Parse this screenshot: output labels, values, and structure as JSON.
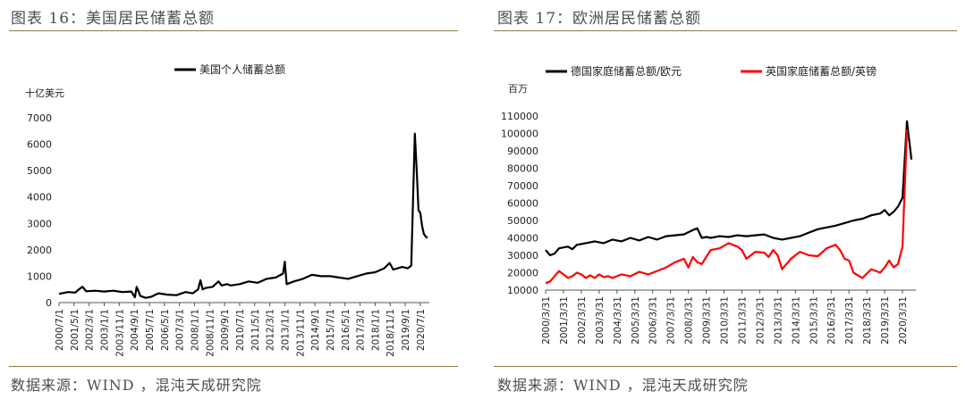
{
  "left_panel": {
    "title": "图表 16：美国居民储蓄总额",
    "source": "数据来源：WIND ，混沌天成研究院"
  },
  "right_panel": {
    "title": "图表 17：欧洲居民储蓄总额",
    "source": "数据来源：WIND ，混沌天成研究院"
  },
  "colors": {
    "black": "#000000",
    "red": "#ff0000",
    "rule": "#8b7b4a"
  },
  "chart_data": [
    {
      "type": "line",
      "title": "",
      "ylabel": "十亿美元",
      "xlabel": "",
      "ylim": [
        0,
        7000
      ],
      "yticks": [
        0,
        1000,
        2000,
        3000,
        4000,
        5000,
        6000,
        7000
      ],
      "xticks": [
        "2000/7/1",
        "2001/5/1",
        "2002/3/1",
        "2003/1/1",
        "2003/11/1",
        "2004/9/1",
        "2005/7/1",
        "2006/5/1",
        "2007/3/1",
        "2008/1/1",
        "2008/11/1",
        "2009/9/1",
        "2010/7/1",
        "2011/5/1",
        "2012/3/1",
        "2013/1/1",
        "2013/11/1",
        "2014/9/1",
        "2015/7/1",
        "2016/5/1",
        "2017/3/1",
        "2018/1/1",
        "2018/11/1",
        "2019/9/1",
        "2020/7/1"
      ],
      "legend": "top-center",
      "grid": false,
      "series": [
        {
          "name": "美国个人储蓄总额",
          "color": "#000000",
          "x": [
            2000.5,
            2001.0,
            2001.4,
            2001.6,
            2001.8,
            2002.0,
            2002.5,
            2003.0,
            2003.5,
            2004.0,
            2004.5,
            2004.7,
            2004.8,
            2005.0,
            2005.3,
            2005.6,
            2006.0,
            2006.5,
            2007.0,
            2007.5,
            2007.9,
            2008.2,
            2008.33,
            2008.45,
            2008.6,
            2009.0,
            2009.33,
            2009.5,
            2009.8,
            2010.0,
            2010.5,
            2011.0,
            2011.5,
            2012.0,
            2012.5,
            2012.9,
            2013.0,
            2013.1,
            2013.5,
            2014.0,
            2014.5,
            2015.0,
            2015.5,
            2016.0,
            2016.5,
            2017.0,
            2017.5,
            2018.0,
            2018.5,
            2018.8,
            2019.0,
            2019.5,
            2019.8,
            2020.0,
            2020.2,
            2020.3,
            2020.4,
            2020.5,
            2020.6,
            2020.7,
            2020.8,
            2020.9
          ],
          "values": [
            330,
            400,
            380,
            500,
            600,
            430,
            450,
            420,
            450,
            400,
            420,
            200,
            600,
            250,
            180,
            220,
            350,
            300,
            280,
            400,
            350,
            500,
            850,
            500,
            550,
            600,
            800,
            650,
            700,
            650,
            700,
            800,
            750,
            900,
            950,
            1100,
            1550,
            700,
            800,
            900,
            1050,
            1000,
            1000,
            950,
            900,
            1000,
            1100,
            1150,
            1300,
            1500,
            1250,
            1350,
            1300,
            1400,
            6400,
            5000,
            3500,
            3400,
            2900,
            2600,
            2500,
            2450
          ]
        }
      ]
    },
    {
      "type": "line",
      "title": "",
      "ylabel": "百万",
      "xlabel": "",
      "ylim": [
        10000,
        110000
      ],
      "yticks": [
        10000,
        20000,
        30000,
        40000,
        50000,
        60000,
        70000,
        80000,
        90000,
        100000,
        110000
      ],
      "xticks": [
        "2000/3/31",
        "2001/3/31",
        "2002/3/31",
        "2003/3/31",
        "2004/3/31",
        "2005/3/31",
        "2006/3/31",
        "2007/3/31",
        "2008/3/31",
        "2009/3/31",
        "2010/3/31",
        "2011/3/31",
        "2012/3/31",
        "2013/3/31",
        "2014/3/31",
        "2015/3/31",
        "2016/3/31",
        "2017/3/31",
        "2018/3/31",
        "2019/3/31",
        "2020/3/31"
      ],
      "legend": "top",
      "grid": false,
      "series": [
        {
          "name": "德国家庭储蓄总额/欧元",
          "color": "#000000",
          "x": [
            2000.25,
            2000.5,
            2000.75,
            2001.0,
            2001.25,
            2001.5,
            2001.75,
            2002.0,
            2002.5,
            2003.0,
            2003.5,
            2004.0,
            2004.5,
            2005.0,
            2005.5,
            2006.0,
            2006.5,
            2007.0,
            2007.5,
            2008.0,
            2008.5,
            2008.75,
            2009.0,
            2009.25,
            2009.5,
            2010.0,
            2010.5,
            2011.0,
            2011.5,
            2012.0,
            2012.5,
            2013.0,
            2013.5,
            2014.0,
            2014.5,
            2015.0,
            2015.5,
            2016.0,
            2016.5,
            2017.0,
            2017.5,
            2018.0,
            2018.5,
            2019.0,
            2019.25,
            2019.5,
            2019.75,
            2020.0,
            2020.25,
            2020.5,
            2020.75
          ],
          "values": [
            33000,
            30000,
            31000,
            34000,
            34500,
            35000,
            33500,
            36000,
            37000,
            38000,
            37000,
            39000,
            38000,
            40000,
            38500,
            40500,
            39000,
            41000,
            41500,
            42000,
            44500,
            45500,
            40000,
            40500,
            40000,
            41000,
            40500,
            41500,
            41000,
            41500,
            42000,
            40000,
            39000,
            40000,
            41000,
            43000,
            45000,
            46000,
            47000,
            48500,
            50000,
            51000,
            53000,
            54000,
            56000,
            53000,
            55000,
            58000,
            63000,
            107000,
            85000
          ]
        },
        {
          "name": "英国家庭储蓄总额/英镑",
          "color": "#ff0000",
          "x": [
            2000.25,
            2000.5,
            2000.75,
            2001.0,
            2001.25,
            2001.5,
            2001.75,
            2002.0,
            2002.25,
            2002.5,
            2002.75,
            2003.0,
            2003.25,
            2003.5,
            2003.75,
            2004.0,
            2004.5,
            2005.0,
            2005.5,
            2006.0,
            2006.5,
            2007.0,
            2007.5,
            2008.0,
            2008.25,
            2008.5,
            2008.75,
            2009.0,
            2009.25,
            2009.5,
            2010.0,
            2010.5,
            2011.0,
            2011.25,
            2011.5,
            2012.0,
            2012.5,
            2012.75,
            2013.0,
            2013.25,
            2013.5,
            2014.0,
            2014.5,
            2015.0,
            2015.5,
            2016.0,
            2016.5,
            2016.75,
            2017.0,
            2017.25,
            2017.5,
            2018.0,
            2018.5,
            2019.0,
            2019.25,
            2019.5,
            2019.75,
            2020.0,
            2020.25,
            2020.5
          ],
          "values": [
            14000,
            15000,
            18000,
            21000,
            19000,
            17000,
            18000,
            20000,
            19000,
            17000,
            18500,
            17000,
            19000,
            17500,
            18000,
            17000,
            19000,
            18000,
            20500,
            19000,
            21000,
            23000,
            26000,
            28000,
            23000,
            29000,
            26000,
            25000,
            29000,
            33000,
            34000,
            37000,
            35000,
            33000,
            28000,
            32000,
            31500,
            29000,
            33000,
            30000,
            22000,
            28000,
            32000,
            30000,
            29500,
            34000,
            36000,
            33000,
            28000,
            27000,
            20000,
            17000,
            22000,
            20000,
            23000,
            27000,
            23000,
            25000,
            35000,
            102000
          ]
        }
      ]
    }
  ]
}
